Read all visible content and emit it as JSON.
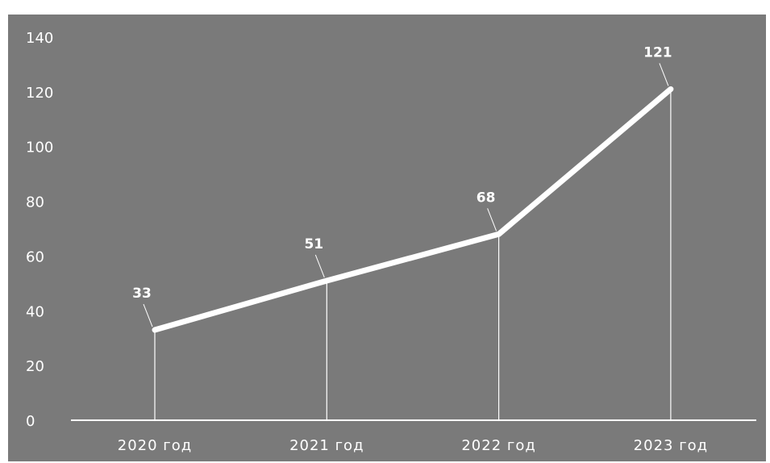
{
  "chart_data": {
    "type": "line",
    "categories": [
      "2020 год",
      "2021 год",
      "2022 год",
      "2023 год"
    ],
    "values": [
      33,
      51,
      68,
      121
    ],
    "title": "",
    "xlabel": "",
    "ylabel": "",
    "ylim": [
      0,
      140
    ],
    "yticks": [
      0,
      20,
      40,
      60,
      80,
      100,
      120,
      140
    ],
    "grid": false,
    "legend": "none",
    "data_labels": true,
    "colors": {
      "background": "#7a7a7a",
      "line": "#ffffff",
      "text": "#ffffff"
    }
  }
}
